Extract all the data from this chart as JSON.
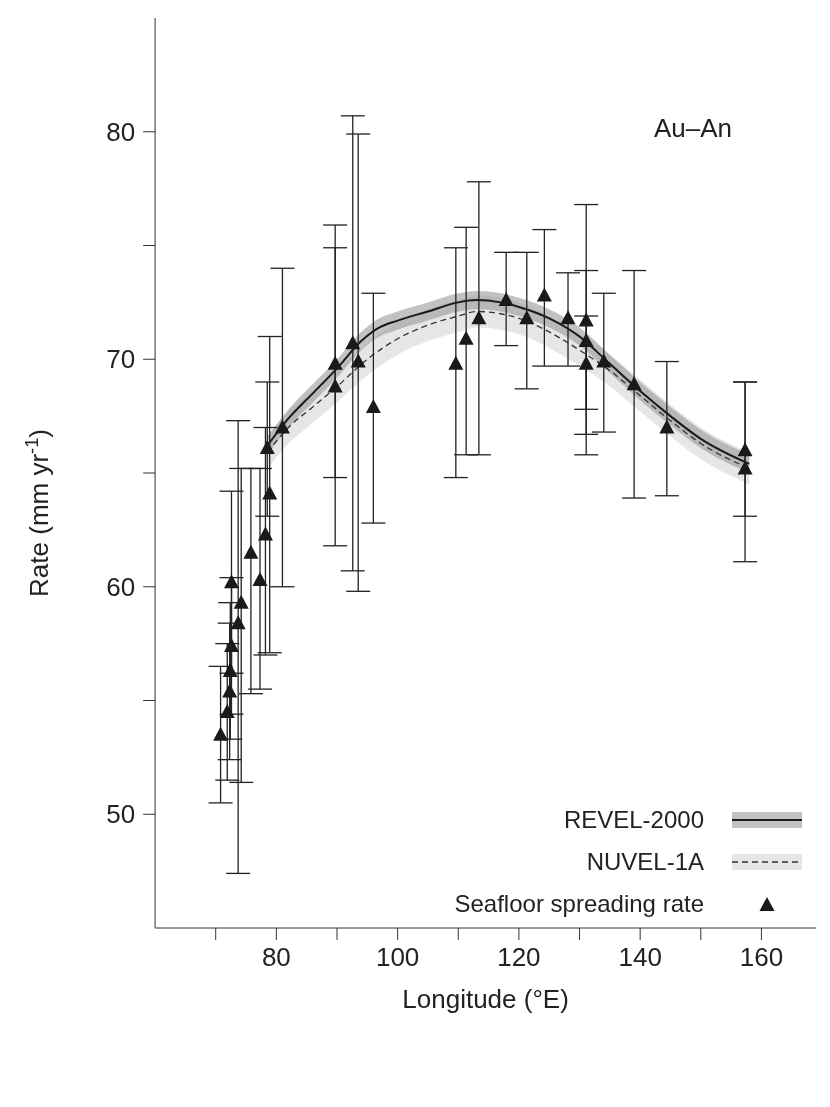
{
  "chart_data": {
    "type": "line",
    "xlabel": "Longitude (°E)",
    "ylabel": "Rate (mm yr$^{-1}$)",
    "annotations": [
      "Au–An"
    ],
    "xlim": [
      60,
      169
    ],
    "xticks": [
      {
        "value": 70,
        "label": null
      },
      80,
      {
        "value": 90,
        "label": null
      },
      100,
      {
        "value": 110,
        "label": null
      },
      120,
      {
        "value": 130,
        "label": null
      },
      140,
      {
        "value": 150,
        "label": null
      },
      160
    ],
    "ylim": [
      45,
      85
    ],
    "yticks": [
      50,
      {
        "value": 55,
        "label": null
      },
      60,
      {
        "value": 65,
        "label": null
      },
      70,
      {
        "value": 75,
        "label": null
      },
      80
    ],
    "grid": false,
    "legend": "bottom right",
    "series": [
      {
        "name": "REVEL-2000",
        "type": "line",
        "line_style": "solid",
        "color": "#1a1a1a",
        "x": [
          78.5,
          82,
          86,
          90,
          94,
          97,
          100,
          105,
          110,
          113,
          117,
          120,
          125,
          130,
          135,
          140,
          145,
          150,
          158
        ],
        "values": [
          66.2,
          67.4,
          68.5,
          69.6,
          70.8,
          71.4,
          71.7,
          72.1,
          72.5,
          72.6,
          72.5,
          72.3,
          71.8,
          71.0,
          69.8,
          68.6,
          67.5,
          66.5,
          65.4
        ],
        "lower": [
          65.8,
          67.0,
          68.1,
          69.2,
          70.4,
          71.0,
          71.3,
          71.7,
          72.1,
          72.2,
          72.1,
          71.9,
          71.4,
          70.6,
          69.4,
          68.2,
          67.1,
          66.1,
          65.0
        ],
        "upper": [
          66.6,
          67.8,
          68.9,
          70.0,
          71.2,
          71.8,
          72.1,
          72.5,
          72.9,
          73.0,
          72.9,
          72.7,
          72.2,
          71.4,
          70.2,
          69.0,
          67.9,
          66.9,
          65.8
        ]
      },
      {
        "name": "NUVEL-1A",
        "type": "line",
        "line_style": "dashed",
        "color": "#333333",
        "x": [
          78.5,
          82,
          86,
          90,
          95,
          100,
          105,
          110,
          113,
          117,
          120,
          125,
          130,
          135,
          140,
          145,
          150,
          158
        ],
        "values": [
          65.9,
          67.0,
          67.9,
          68.8,
          70.0,
          70.9,
          71.5,
          71.9,
          72.1,
          72.0,
          71.8,
          71.2,
          70.4,
          69.5,
          68.4,
          67.3,
          66.3,
          65.2
        ],
        "lower": [
          65.2,
          66.3,
          67.2,
          68.1,
          69.3,
          70.2,
          70.8,
          71.2,
          71.4,
          71.3,
          71.1,
          70.5,
          69.7,
          68.8,
          67.7,
          66.6,
          65.6,
          64.5
        ],
        "upper": [
          66.6,
          67.7,
          68.6,
          69.5,
          70.7,
          71.6,
          72.2,
          72.6,
          72.8,
          72.7,
          72.5,
          71.9,
          71.1,
          70.2,
          69.1,
          68.0,
          67.0,
          65.9
        ]
      },
      {
        "name": "Seafloor spreading rate",
        "type": "scatter",
        "marker": "triangle",
        "color": "#1a1a1a",
        "x": [
          70.8,
          71.9,
          72.3,
          72.4,
          72.6,
          72.6,
          73.7,
          74.2,
          75.8,
          77.3,
          78.2,
          78.9,
          78.5,
          81,
          89.7,
          89.7,
          92.6,
          93.5,
          96,
          109.6,
          111.3,
          113.4,
          117.9,
          121.3,
          124.2,
          128.1,
          131.1,
          131.1,
          131.1,
          134,
          139,
          144.4,
          157.3,
          157.3
        ],
        "values": [
          53.5,
          54.5,
          55.4,
          56.3,
          57.4,
          60.2,
          58.4,
          59.3,
          61.5,
          60.3,
          62.3,
          64.1,
          66.1,
          67.0,
          69.8,
          68.8,
          70.7,
          69.9,
          67.9,
          69.8,
          70.9,
          71.8,
          72.6,
          71.8,
          72.8,
          71.8,
          71.7,
          70.8,
          69.8,
          69.9,
          68.9,
          67.0,
          66.0,
          65.2
        ],
        "errors": [
          [
            50.5,
            56.5
          ],
          [
            51.5,
            57.5
          ],
          [
            52.4,
            58.4
          ],
          [
            53.3,
            59.3
          ],
          [
            54.4,
            60.4
          ],
          [
            56.2,
            64.2
          ],
          [
            47.4,
            67.3
          ],
          [
            51.4,
            65.2
          ],
          [
            55.3,
            65.2
          ],
          [
            55.5,
            65.2
          ],
          [
            57.0,
            67.0
          ],
          [
            57.1,
            71.0
          ],
          [
            63.1,
            69.0
          ],
          [
            60.0,
            74.0
          ],
          [
            61.8,
            75.9
          ],
          [
            64.8,
            74.9
          ],
          [
            60.7,
            80.7
          ],
          [
            59.8,
            79.9
          ],
          [
            62.8,
            72.9
          ],
          [
            64.8,
            74.9
          ],
          [
            65.8,
            75.8
          ],
          [
            65.8,
            77.8
          ],
          [
            70.6,
            74.7
          ],
          [
            68.7,
            74.7
          ],
          [
            69.7,
            75.7
          ],
          [
            69.7,
            73.8
          ],
          [
            65.8,
            76.8
          ],
          [
            67.8,
            73.9
          ],
          [
            66.7,
            71.9
          ],
          [
            66.8,
            72.9
          ],
          [
            63.9,
            73.9
          ],
          [
            64.0,
            69.9
          ],
          [
            63.1,
            69.0
          ],
          [
            61.1,
            69.0
          ]
        ]
      }
    ]
  }
}
